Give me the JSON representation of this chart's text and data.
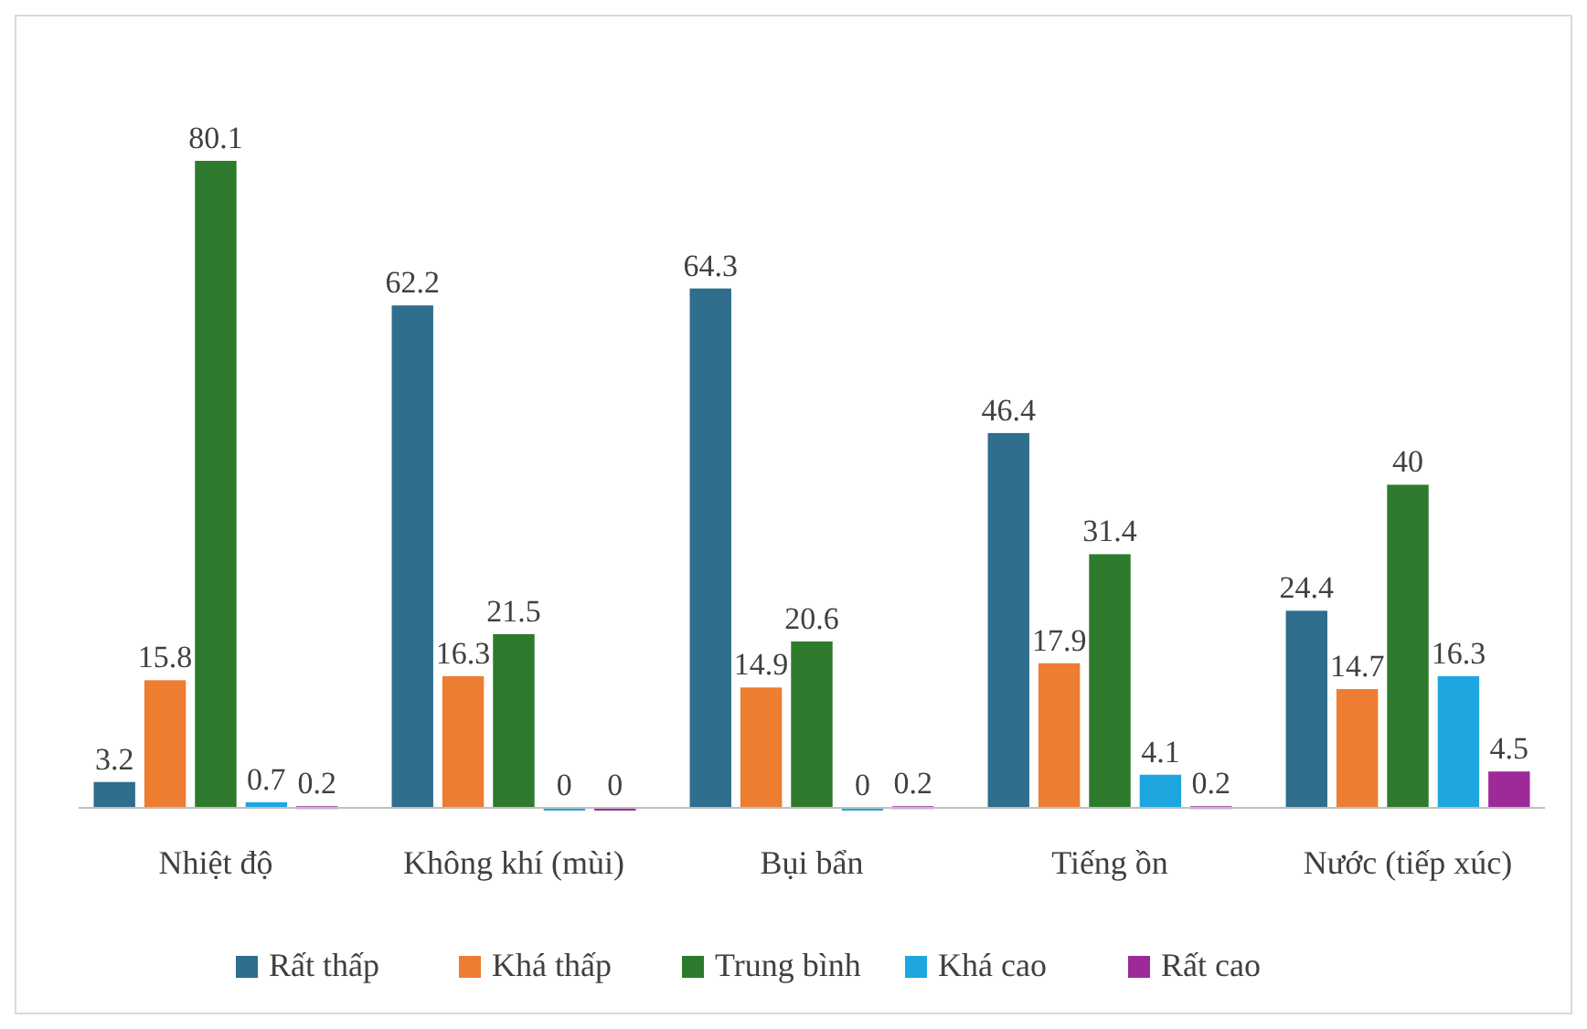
{
  "chart_data": {
    "type": "bar",
    "categories": [
      "Nhiệt độ",
      "Không khí (mùi)",
      "Bụi bẩn",
      "Tiếng ồn",
      "Nước (tiếp xúc)"
    ],
    "series": [
      {
        "name": "Rất thấp",
        "color": "#2f6e8c",
        "values": [
          3.2,
          62.2,
          64.3,
          46.4,
          24.4
        ]
      },
      {
        "name": "Khá thấp",
        "color": "#ed7d31",
        "values": [
          15.8,
          16.3,
          14.9,
          17.9,
          14.7
        ]
      },
      {
        "name": "Trung bình",
        "color": "#2d7a2d",
        "values": [
          80.1,
          21.5,
          20.6,
          31.4,
          40
        ]
      },
      {
        "name": "Khá cao",
        "color": "#1ea6e0",
        "values": [
          0.7,
          0,
          0,
          4.1,
          16.3
        ]
      },
      {
        "name": "Rất cao",
        "color": "#9e2a9a",
        "values": [
          0.2,
          0,
          0.2,
          0.2,
          4.5
        ]
      }
    ],
    "data_labels": true,
    "legend": "bottom",
    "grid": false
  }
}
